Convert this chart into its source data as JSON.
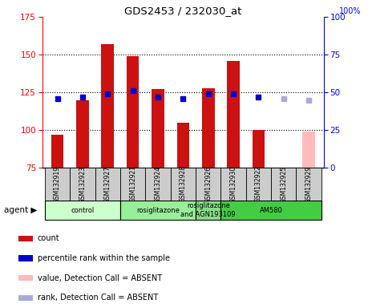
{
  "title": "GDS2453 / 232030_at",
  "samples": [
    "GSM132919",
    "GSM132923",
    "GSM132927",
    "GSM132921",
    "GSM132924",
    "GSM132928",
    "GSM132926",
    "GSM132930",
    "GSM132922",
    "GSM132925",
    "GSM132929"
  ],
  "bar_heights": [
    97,
    120,
    157,
    149,
    127,
    105,
    128,
    146,
    100,
    null,
    null
  ],
  "bar_bottom": 75,
  "bar_absent_heights": [
    null,
    null,
    null,
    null,
    null,
    null,
    null,
    null,
    null,
    null,
    99
  ],
  "percentile_ranks": [
    46,
    47,
    49,
    51,
    47,
    46,
    49,
    49,
    47,
    null,
    null
  ],
  "percentile_absent": [
    null,
    null,
    null,
    null,
    null,
    null,
    null,
    null,
    null,
    46,
    45
  ],
  "groups": [
    {
      "label": "control",
      "start": 0,
      "end": 3,
      "color": "#ccffcc"
    },
    {
      "label": "rosiglitazone",
      "start": 3,
      "end": 6,
      "color": "#99ee99"
    },
    {
      "label": "rosiglitazone\nand AGN193109",
      "start": 6,
      "end": 7,
      "color": "#88dd88"
    },
    {
      "label": "AM580",
      "start": 7,
      "end": 11,
      "color": "#44cc44"
    }
  ],
  "ylim": [
    75,
    175
  ],
  "yticks_left": [
    75,
    100,
    125,
    150,
    175
  ],
  "yticks_right": [
    0,
    25,
    50,
    75,
    100
  ],
  "bar_color": "#cc1111",
  "bar_absent_color": "#ffbbbb",
  "rank_color": "#0000cc",
  "rank_absent_color": "#aaaadd",
  "bar_width": 0.5,
  "legend": [
    {
      "label": "count",
      "color": "#cc1111"
    },
    {
      "label": "percentile rank within the sample",
      "color": "#0000cc"
    },
    {
      "label": "value, Detection Call = ABSENT",
      "color": "#ffbbbb"
    },
    {
      "label": "rank, Detection Call = ABSENT",
      "color": "#aaaadd"
    }
  ]
}
